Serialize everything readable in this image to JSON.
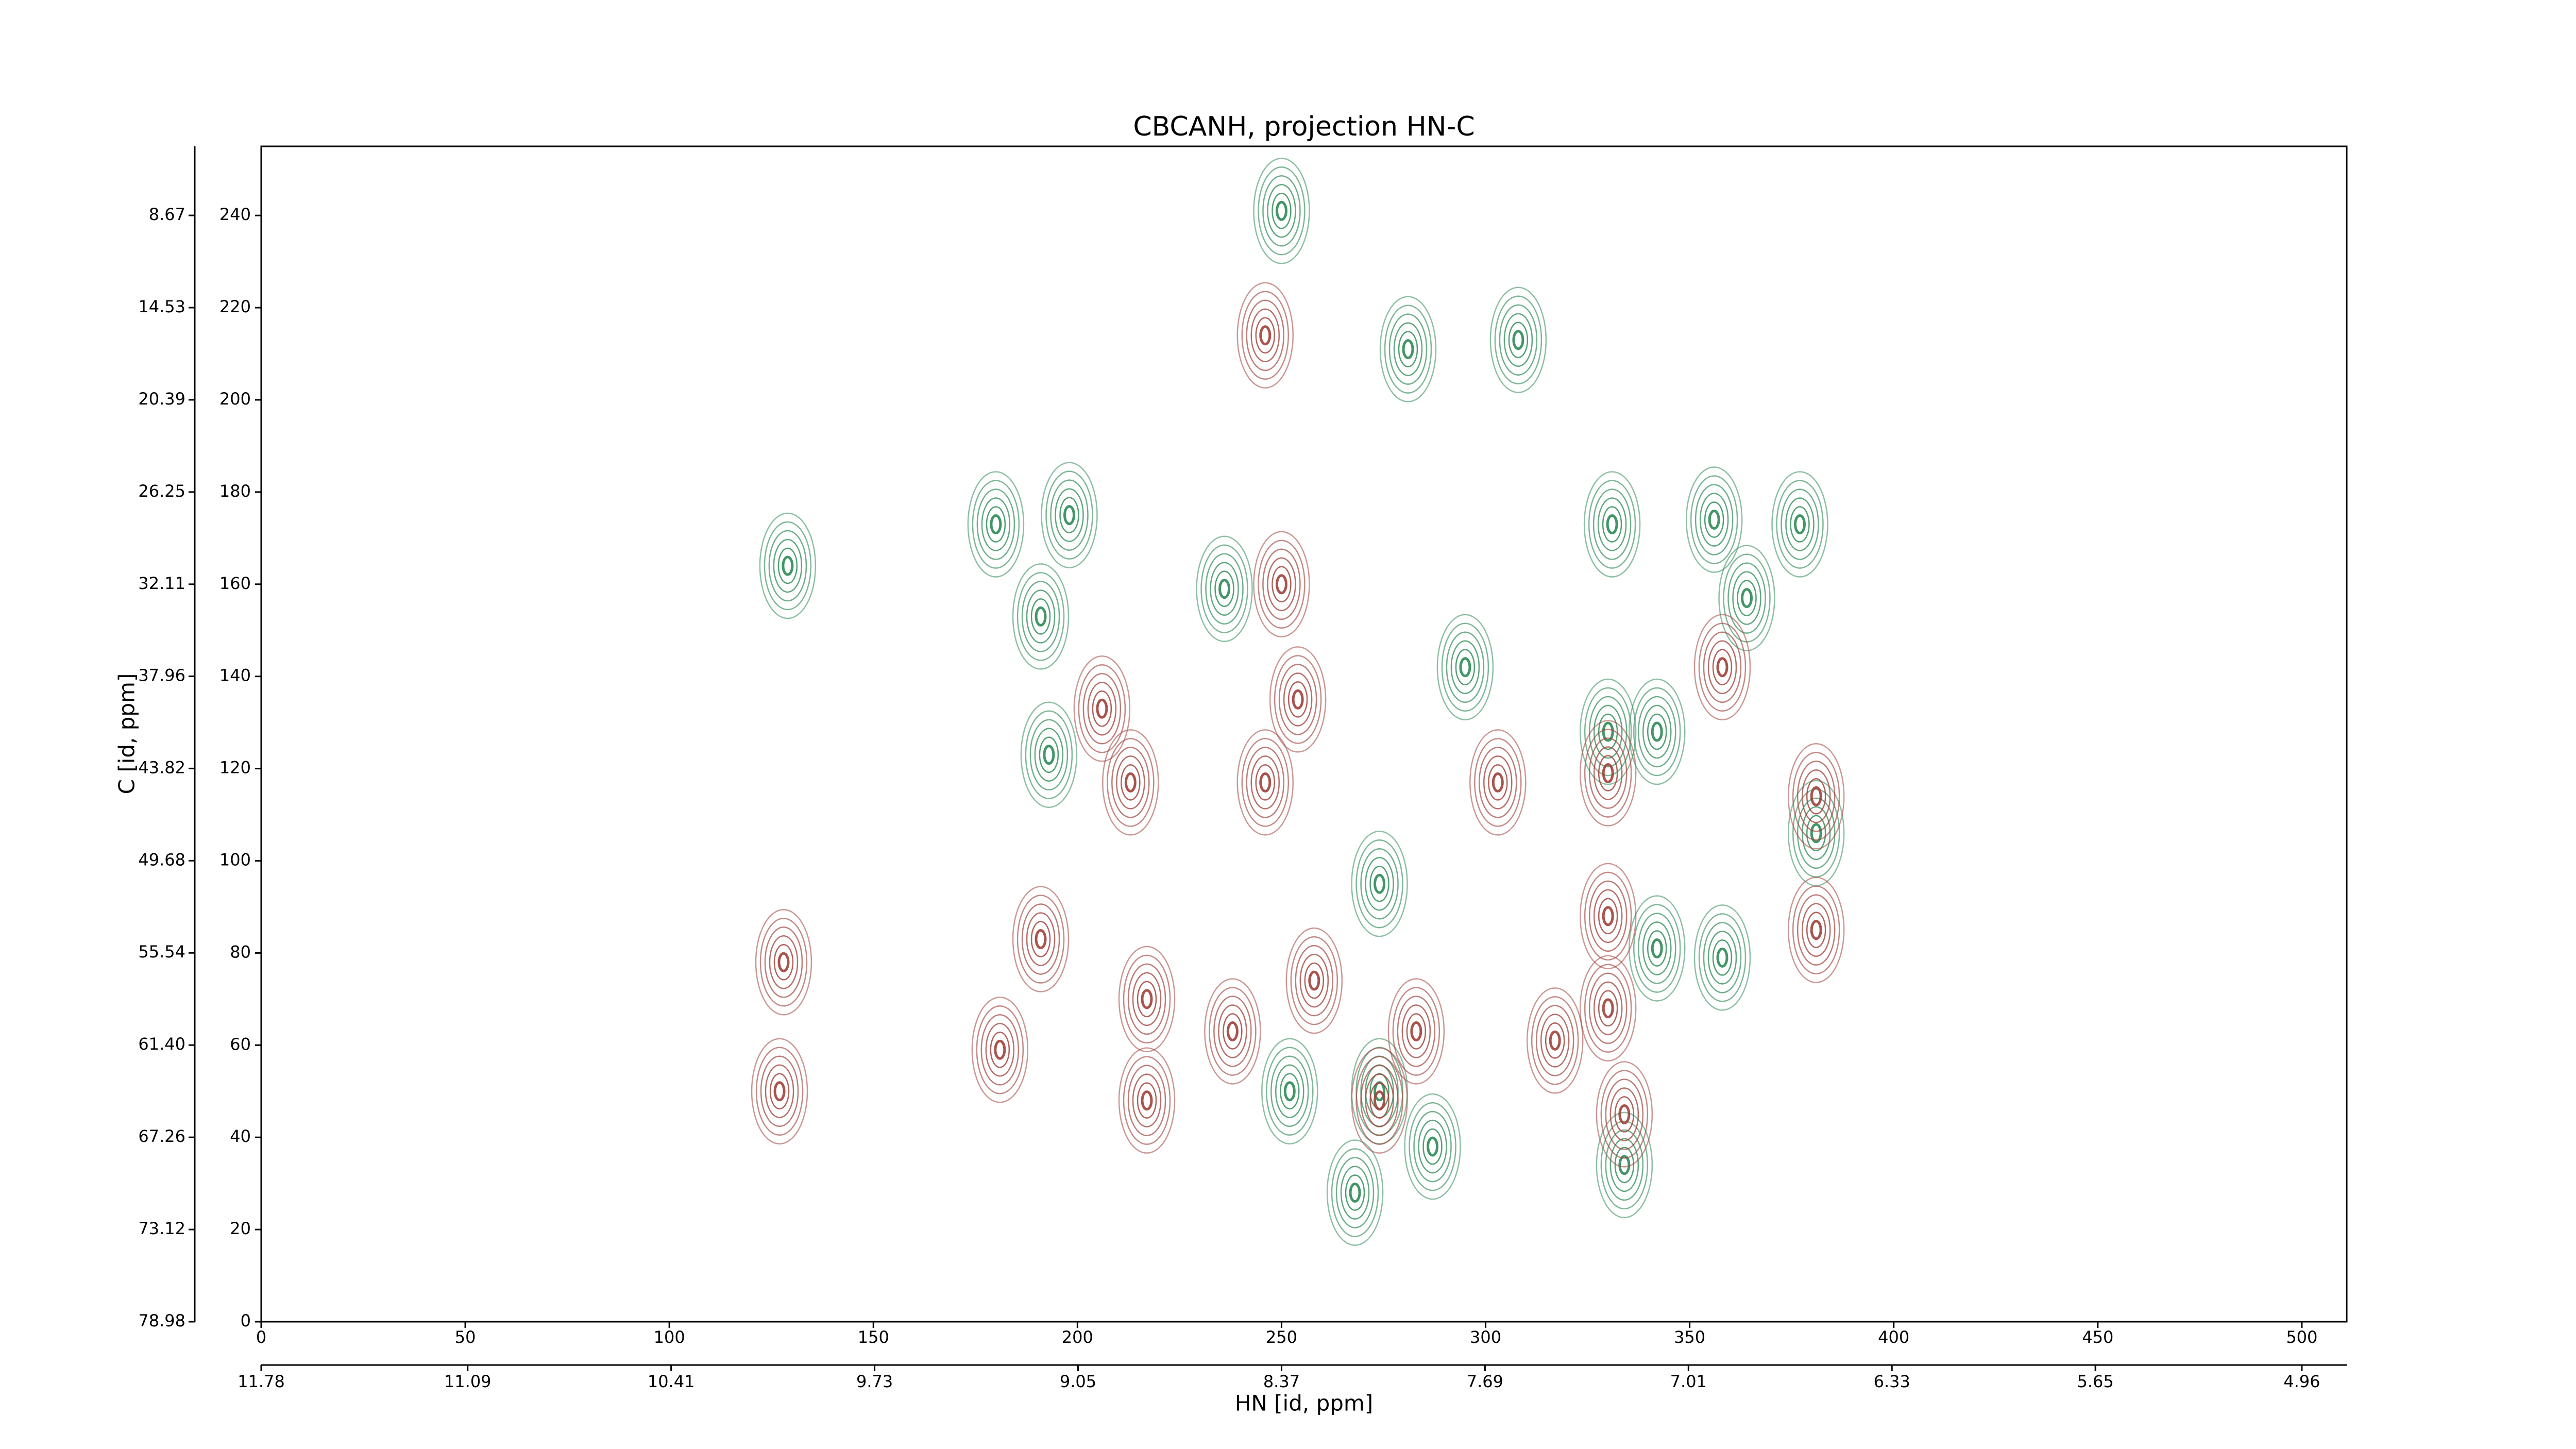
{
  "chart_data": {
    "type": "contour",
    "title": "CBCANH, projection HN-C",
    "xlabel": "HN [id, ppm]",
    "ylabel": "C [id, ppm]",
    "xlim": [
      0,
      511
    ],
    "xticks": [
      0,
      50,
      100,
      150,
      200,
      250,
      300,
      350,
      400,
      450,
      500
    ],
    "ylim": [
      0,
      255
    ],
    "yticks": [
      0,
      20,
      40,
      60,
      80,
      100,
      120,
      140,
      160,
      180,
      200,
      220,
      240
    ],
    "x2lim": [
      11.78,
      4.81
    ],
    "x2ticks": [
      11.78,
      11.09,
      10.41,
      9.73,
      9.05,
      8.37,
      7.69,
      7.01,
      6.33,
      5.65,
      4.96
    ],
    "y2lim": [
      78.98,
      4.28
    ],
    "y2ticks": [
      78.98,
      73.12,
      67.26,
      {
        "value": 61.4,
        "label": "61.40"
      },
      55.54,
      49.68,
      43.82,
      37.96,
      32.11,
      26.25,
      20.39,
      14.53,
      8.67
    ],
    "series": [
      {
        "color": "#2e8b57",
        "x": [
          129,
          180,
          198,
          250,
          281,
          308,
          331,
          356,
          377,
          191,
          236,
          295,
          342,
          330,
          193,
          274,
          381,
          342,
          358,
          252,
          274,
          268,
          334,
          287,
          364
        ],
        "y": [
          164,
          173,
          175,
          241,
          211,
          213,
          173,
          174,
          173,
          153,
          159,
          142,
          128,
          128,
          123,
          95,
          106,
          81,
          79,
          50,
          50,
          28,
          34,
          38,
          157
        ]
      },
      {
        "color": "#a0413a",
        "x": [
          128,
          127,
          181,
          191,
          217,
          238,
          258,
          283,
          317,
          330,
          330,
          334,
          381,
          381,
          358,
          213,
          246,
          303,
          330,
          250,
          206,
          254,
          274,
          217,
          246
        ],
        "y": [
          78,
          50,
          59,
          83,
          70,
          63,
          74,
          63,
          61,
          88,
          68,
          45,
          114,
          85,
          142,
          117,
          117,
          117,
          119,
          160,
          133,
          135,
          48,
          48,
          214
        ]
      }
    ]
  }
}
